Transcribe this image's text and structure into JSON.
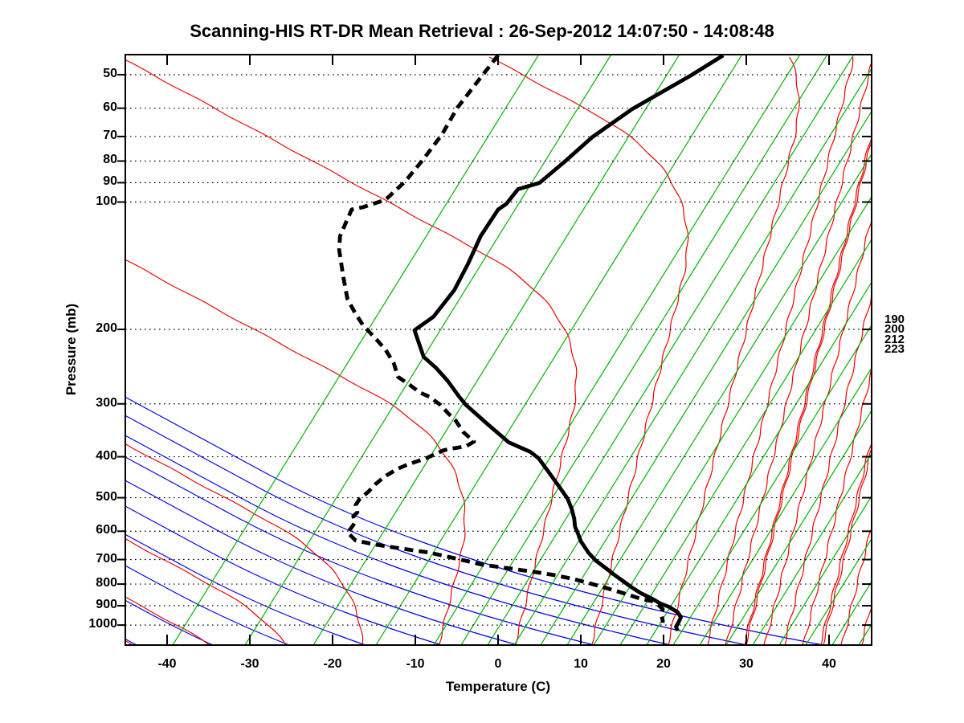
{
  "title": "Scanning-HIS RT-DR Mean Retrieval : 26-Sep-2012 14:07:50 - 14:08:48",
  "axes": {
    "xlabel": "Temperature (C)",
    "ylabel": "Pressure (mb)",
    "x_ticks": [
      -40,
      -30,
      -20,
      -10,
      0,
      10,
      20,
      30,
      40
    ],
    "pressure_ticks": [
      50,
      60,
      70,
      80,
      90,
      100,
      200,
      300,
      400,
      500,
      600,
      700,
      800,
      900,
      1000
    ],
    "x_range_c": [
      -45,
      45
    ],
    "pressure_range_mb": [
      45,
      1114
    ],
    "grid_style": "dotted horizontal isobars, log-pressure scale"
  },
  "right_edge_level_labels": [
    "190",
    "200",
    "212",
    "223"
  ],
  "chart_data": {
    "type": "line",
    "subtype": "skewt_log_p_sounding",
    "x_unit": "deg C (screen/skewed temperature coordinate)",
    "y_unit": "mb (log scale)",
    "legend": "none shown; solid thick black = retrieved temperature, dashed thick black = retrieved dewpoint",
    "series": [
      {
        "name": "temperature",
        "style": "solid",
        "color": "#000000",
        "points": [
          [
            27.2,
            45
          ],
          [
            23.3,
            50.2
          ],
          [
            16.2,
            60.3
          ],
          [
            11.4,
            70.2
          ],
          [
            8.1,
            80.1
          ],
          [
            5.0,
            90.1
          ],
          [
            2.4,
            93.3
          ],
          [
            1.0,
            101
          ],
          [
            0.0,
            104.2
          ],
          [
            -2.1,
            120.3
          ],
          [
            -3.6,
            139.6
          ],
          [
            -5.3,
            161.6
          ],
          [
            -7.8,
            186.6
          ],
          [
            -10.1,
            200.9
          ],
          [
            -9.0,
            232.1
          ],
          [
            -7.5,
            246.7
          ],
          [
            -6.1,
            264.5
          ],
          [
            -4.7,
            288.6
          ],
          [
            -3.9,
            301.4
          ],
          [
            -1.3,
            334.6
          ],
          [
            1.3,
            369.9
          ],
          [
            3.9,
            389.6
          ],
          [
            4.9,
            403.4
          ],
          [
            6.3,
            440
          ],
          [
            7.5,
            474.3
          ],
          [
            8.4,
            502.2
          ],
          [
            8.9,
            531.6
          ],
          [
            9.2,
            560.3
          ],
          [
            9.3,
            585.5
          ],
          [
            9.6,
            603.7
          ],
          [
            10.0,
            633.5
          ],
          [
            10.9,
            673.5
          ],
          [
            11.8,
            703.7
          ],
          [
            13.1,
            735.5
          ],
          [
            14.1,
            762
          ],
          [
            15.2,
            789.5
          ],
          [
            16.0,
            810.7
          ],
          [
            17.2,
            839.6
          ],
          [
            18.6,
            865.9
          ],
          [
            19.6,
            888.9
          ],
          [
            20.6,
            904.6
          ],
          [
            21.7,
            932.6
          ],
          [
            22.1,
            957.3
          ],
          [
            21.8,
            987.1
          ],
          [
            21.5,
            1008.9
          ],
          [
            21.7,
            1031.1
          ]
        ]
      },
      {
        "name": "dewpoint",
        "style": "dashed",
        "color": "#000000",
        "points": [
          [
            0.0,
            45
          ],
          [
            -1.9,
            50.2
          ],
          [
            -4.9,
            59.8
          ],
          [
            -6.8,
            69.3
          ],
          [
            -9.0,
            79.1
          ],
          [
            -11.2,
            89.3
          ],
          [
            -13.6,
            98.8
          ],
          [
            -16.3,
            102.8
          ],
          [
            -17.7,
            104.2
          ],
          [
            -19.1,
            120.3
          ],
          [
            -19.2,
            129.6
          ],
          [
            -18.7,
            150.5
          ],
          [
            -18.2,
            169.5
          ],
          [
            -17.3,
            182.6
          ],
          [
            -16.3,
            195.8
          ],
          [
            -15.0,
            208.2
          ],
          [
            -13.6,
            223.3
          ],
          [
            -12.6,
            240.5
          ],
          [
            -12.1,
            258.9
          ],
          [
            -10.7,
            270.4
          ],
          [
            -9.4,
            282.4
          ],
          [
            -8.3,
            288.6
          ],
          [
            -7.0,
            301.4
          ],
          [
            -6.1,
            314.9
          ],
          [
            -5.1,
            329
          ],
          [
            -4.2,
            349.7
          ],
          [
            -2.9,
            368.3
          ],
          [
            -3.9,
            378.1
          ],
          [
            -5.8,
            383.1
          ],
          [
            -6.6,
            386.4
          ],
          [
            -8.7,
            403.4
          ],
          [
            -11.0,
            417.7
          ],
          [
            -12.1,
            426.9
          ],
          [
            -13.6,
            444.2
          ],
          [
            -14.8,
            464
          ],
          [
            -15.7,
            484.6
          ],
          [
            -16.7,
            502.2
          ],
          [
            -17.2,
            520.2
          ],
          [
            -17.0,
            541.1
          ],
          [
            -17.5,
            553
          ],
          [
            -17.3,
            572.8
          ],
          [
            -18.0,
            598.5
          ],
          [
            -18.2,
            603.7
          ],
          [
            -17.2,
            631
          ],
          [
            -14.9,
            644.9
          ],
          [
            -11.7,
            659.2
          ],
          [
            -8.4,
            673.5
          ],
          [
            -5.1,
            696.2
          ],
          [
            -1.9,
            719.7
          ],
          [
            1.3,
            734.4
          ],
          [
            4.6,
            749.5
          ],
          [
            6.8,
            761.8
          ],
          [
            9.0,
            777.4
          ],
          [
            10.7,
            793.3
          ],
          [
            12.3,
            809.2
          ],
          [
            13.9,
            826.5
          ],
          [
            15.5,
            844.7
          ],
          [
            17.2,
            866.4
          ],
          [
            18.6,
            877.9
          ],
          [
            19.4,
            897.3
          ],
          [
            19.9,
            917
          ],
          [
            19.7,
            945.5
          ],
          [
            19.9,
            974.6
          ],
          [
            19.9,
            987.3
          ]
        ]
      }
    ]
  },
  "background": {
    "isobar_color": "#000000",
    "dry_adiabats": {
      "color": "#0000ee",
      "seed_start": -1350,
      "seed_end": 1085,
      "seed_step": 95,
      "slope_base": 1.85,
      "slope_gain": 3.7,
      "slope_pow": 1.15
    },
    "moist_adiabats": {
      "color": "#ee0000",
      "pair_offset": -4,
      "extra_start": 880,
      "extra_end": 1085,
      "extra_step": 24,
      "slope_base": 1.85,
      "slope_drop": 2.1,
      "m_lo": 0.06,
      "m_span": 0.3,
      "wobble_amp": 1.2,
      "wobble_freq": 0.15
    },
    "isopleths": {
      "color": "#00b400",
      "slope": 0.62,
      "seeds_sparse": [
        215,
        305,
        390,
        468,
        540
      ],
      "dense_start": 574,
      "dense_end": 1085,
      "dense_step": 33
    }
  }
}
